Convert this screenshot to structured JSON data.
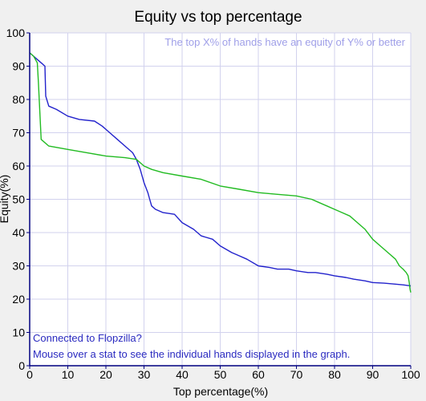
{
  "chart_data": {
    "type": "line",
    "title": "Equity vs top percentage",
    "xlabel": "Top percentage(%)",
    "ylabel": "Equity(%)",
    "xlim": [
      0,
      100
    ],
    "ylim": [
      0,
      100
    ],
    "xticks": [
      0,
      10,
      20,
      30,
      40,
      50,
      60,
      70,
      80,
      90,
      100
    ],
    "yticks": [
      0,
      10,
      20,
      30,
      40,
      50,
      60,
      70,
      80,
      90,
      100
    ],
    "grid": true,
    "annotation": "The top X% of hands have an equity of Y% or better",
    "notes": [
      "Connected to Flopzilla?",
      "Mouse over a stat to see the individual hands displayed in the graph."
    ],
    "colors": {
      "background": "#ffffff",
      "grid": "#d2d2ee",
      "axis": "#000080"
    },
    "series": [
      {
        "color": "#2222cc",
        "x": [
          0,
          1,
          2,
          3,
          4,
          4.2,
          5,
          7,
          10,
          13,
          17,
          19,
          21,
          23,
          25,
          27,
          28,
          29,
          30,
          31,
          31.5,
          32,
          33,
          35,
          38,
          40,
          43,
          45,
          48,
          50,
          53,
          55,
          57,
          60,
          63,
          65,
          68,
          70,
          73,
          75,
          78,
          80,
          83,
          85,
          88,
          90,
          93,
          96,
          98,
          100
        ],
        "y": [
          94,
          93,
          92,
          91,
          90,
          81,
          78,
          77,
          75,
          74,
          73.5,
          72,
          70,
          68,
          66,
          64,
          62,
          59,
          55,
          52,
          50,
          48,
          47,
          46,
          45.5,
          43,
          41,
          39,
          38,
          36,
          34,
          33,
          32,
          30,
          29.5,
          29,
          29,
          28.5,
          28,
          28,
          27.5,
          27,
          26.5,
          26,
          25.5,
          25,
          24.8,
          24.5,
          24.3,
          24
        ]
      },
      {
        "color": "#22bb22",
        "x": [
          0,
          1,
          2,
          2.3,
          3,
          5,
          10,
          15,
          20,
          25,
          28,
          30,
          32,
          35,
          40,
          45,
          50,
          55,
          60,
          65,
          70,
          74,
          76,
          78,
          80,
          82,
          84,
          86,
          88,
          90,
          92,
          94,
          96,
          97,
          98,
          98.8,
          99.3,
          99.6,
          99.8,
          100
        ],
        "y": [
          94,
          93,
          91,
          85,
          68,
          66,
          65,
          64,
          63,
          62.5,
          62,
          60,
          59,
          58,
          57,
          56,
          54,
          53,
          52,
          51.5,
          51,
          50,
          49,
          48,
          47,
          46,
          45,
          43,
          41,
          38,
          36,
          34,
          32,
          30,
          29,
          28,
          27,
          25,
          23,
          22
        ]
      }
    ]
  }
}
